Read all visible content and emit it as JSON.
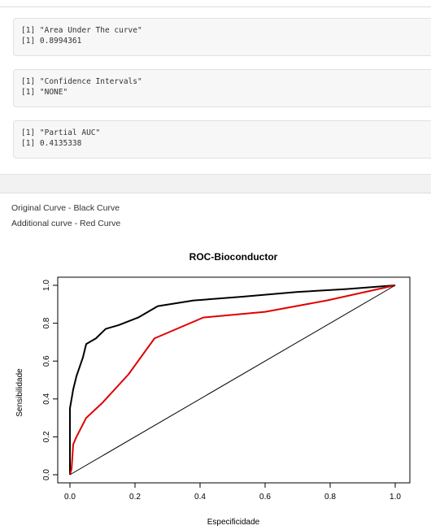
{
  "outputs": [
    {
      "lines": [
        "[1] \"Area Under The curve\"",
        "[1] 0.8994361"
      ]
    },
    {
      "lines": [
        "[1] \"Confidence Intervals\"",
        "[1] \"NONE\""
      ]
    },
    {
      "lines": [
        "[1] \"Partial AUC\"",
        "[1] 0.4135338"
      ]
    }
  ],
  "notes": {
    "line1": "Original Curve - Black Curve",
    "line2": "Additional curve - Red Curve"
  },
  "chart_data": {
    "type": "line",
    "title": "ROC-Bioconductor",
    "xlabel": "Especificidade",
    "ylabel": "Sensibilidade",
    "xlim": [
      0,
      1
    ],
    "ylim": [
      0,
      1
    ],
    "x_ticks": [
      "0.0",
      "0.2",
      "0.4",
      "0.6",
      "0.8",
      "1.0"
    ],
    "y_ticks": [
      "0.0",
      "0.2",
      "0.4",
      "0.6",
      "0.8",
      "1.0"
    ],
    "grid": false,
    "series": [
      {
        "color": "#000000",
        "x": [
          0,
          0,
          0.01,
          0.02,
          0.04,
          0.05,
          0.08,
          0.11,
          0.15,
          0.21,
          0.24,
          0.27,
          0.38,
          0.53,
          0.7,
          0.85,
          1.0
        ],
        "y": [
          0,
          0.35,
          0.45,
          0.52,
          0.62,
          0.69,
          0.72,
          0.77,
          0.79,
          0.83,
          0.86,
          0.89,
          0.92,
          0.94,
          0.965,
          0.98,
          1.0
        ]
      },
      {
        "color": "#e00000",
        "x": [
          0,
          0.005,
          0.01,
          0.02,
          0.05,
          0.1,
          0.18,
          0.26,
          0.41,
          0.6,
          0.79,
          1.0
        ],
        "y": [
          0,
          0.03,
          0.16,
          0.2,
          0.3,
          0.38,
          0.53,
          0.72,
          0.83,
          0.86,
          0.92,
          1.0
        ]
      },
      {
        "color": "#000000",
        "x": [
          0,
          1
        ],
        "y": [
          0,
          1
        ]
      }
    ]
  }
}
